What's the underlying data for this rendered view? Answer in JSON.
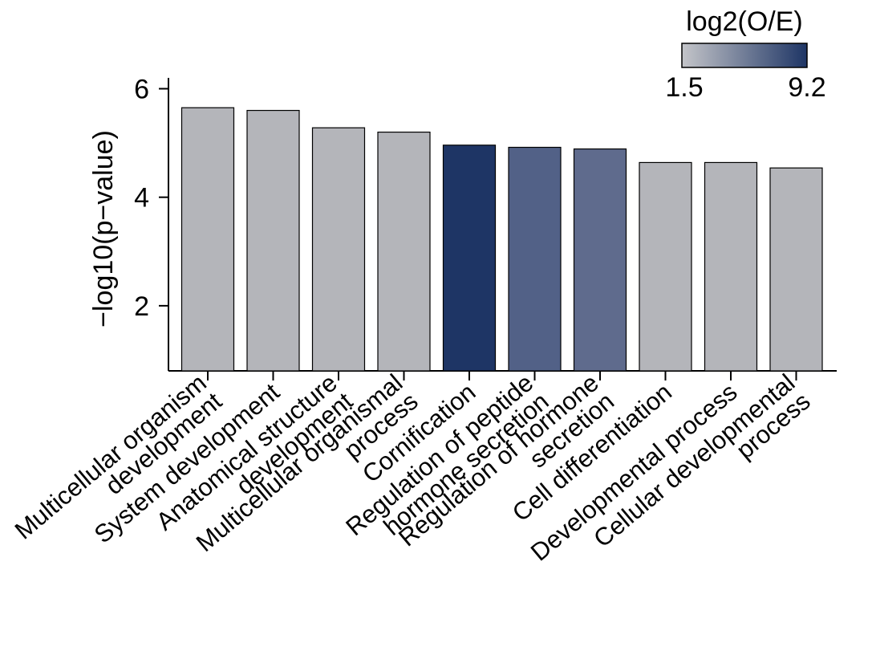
{
  "chart_data": {
    "type": "bar",
    "title": "",
    "xlabel": "",
    "ylabel": "−log10(p−value)",
    "ylim": [
      0.8,
      6.2
    ],
    "yticks": [
      2,
      4,
      6
    ],
    "grid": false,
    "legend": {
      "title": "log2(O/E)",
      "min_label": "1.5",
      "max_label": "9.2",
      "min": 1.5,
      "max": 9.2,
      "placement": "top-right",
      "low_color": "#c4c5c9",
      "high_color": "#1e3565"
    },
    "categories": [
      [
        "Multicellular organism",
        "development"
      ],
      [
        "System development"
      ],
      [
        "Anatomical structure",
        "development"
      ],
      [
        "Multicellular organismal",
        "process"
      ],
      [
        "Cornification"
      ],
      [
        "Regulation of peptide",
        "hormone secretion"
      ],
      [
        "Regulation of hormone",
        "secretion"
      ],
      [
        "Cell differentiation"
      ],
      [
        "Developmental process"
      ],
      [
        "Cellular developmental",
        "process"
      ]
    ],
    "values": [
      5.65,
      5.6,
      5.28,
      5.2,
      4.96,
      4.92,
      4.89,
      4.64,
      4.64,
      4.54
    ],
    "colors": [
      "#b4b5ba",
      "#b4b5ba",
      "#b4b5ba",
      "#b4b5ba",
      "#1e3565",
      "#526187",
      "#5f6b8d",
      "#b4b5ba",
      "#b4b5ba",
      "#b4b5ba"
    ]
  }
}
